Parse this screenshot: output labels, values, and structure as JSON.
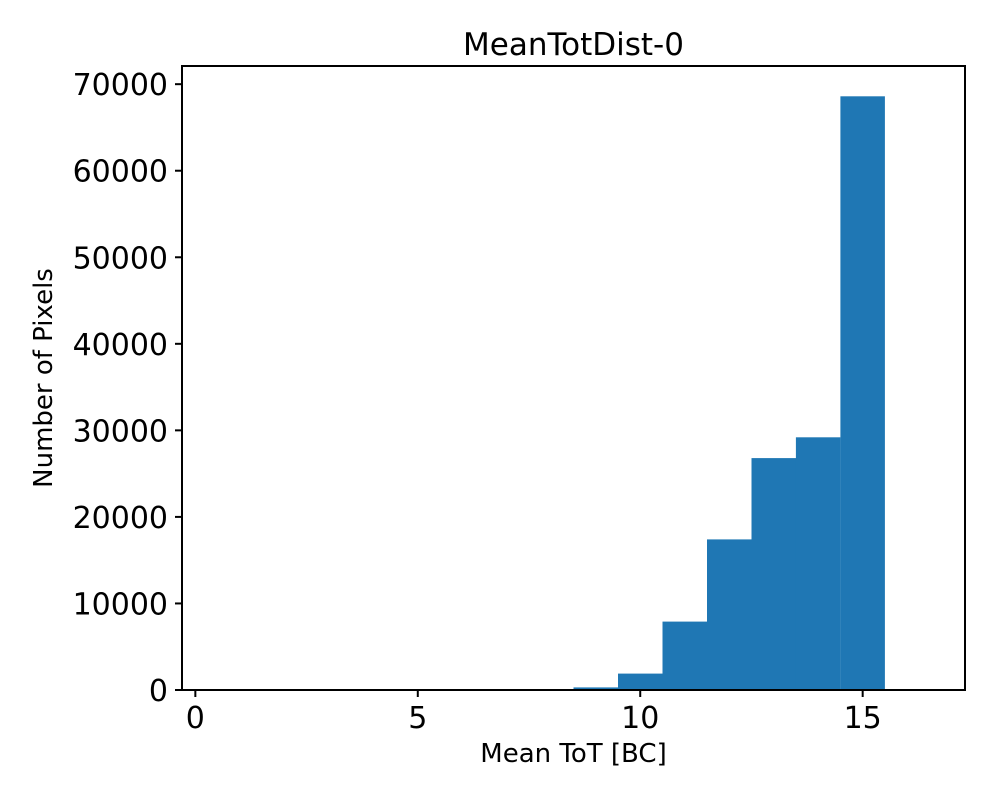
{
  "chart_data": {
    "type": "bar",
    "subtype": "histogram",
    "title": "MeanTotDist-0",
    "xlabel": "Mean ToT [BC]",
    "ylabel": "Number of Pixels",
    "bar_color": "#1f77b4",
    "axis_color": "#000000",
    "background_color": "#ffffff",
    "bin_width": 1,
    "bin_edges": [
      8.5,
      9.5,
      10.5,
      11.5,
      12.5,
      13.5,
      14.5,
      15.5
    ],
    "counts": [
      300,
      1900,
      7900,
      17400,
      26800,
      29200,
      68600
    ],
    "xlim": [
      -0.3,
      17.3
    ],
    "ylim": [
      0,
      72100
    ],
    "xticks": [
      0,
      5,
      10,
      15
    ],
    "yticks": [
      0,
      10000,
      20000,
      30000,
      40000,
      50000,
      60000,
      70000
    ],
    "grid": false,
    "legend": null
  }
}
